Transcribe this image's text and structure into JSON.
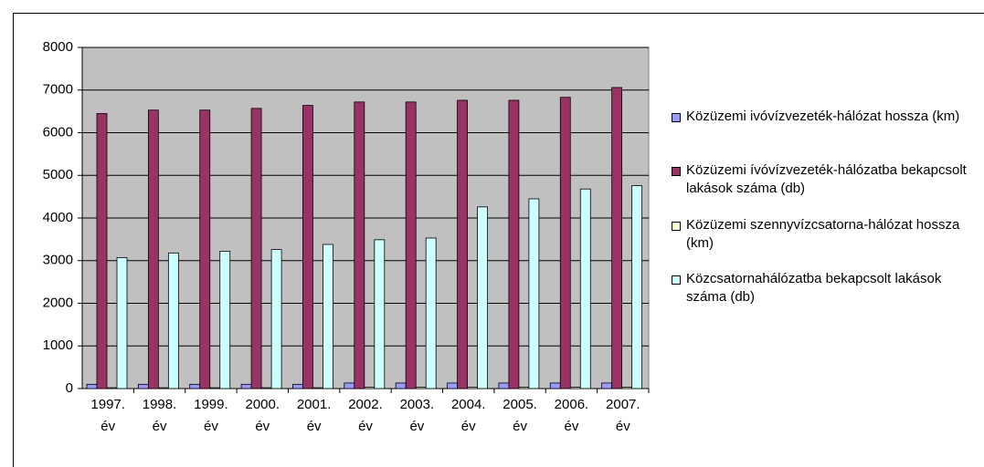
{
  "chart_data": {
    "type": "bar",
    "categories": [
      "1997. év",
      "1998. év",
      "1999. év",
      "2000. év",
      "2001. év",
      "2002. év",
      "2003. év",
      "2004. év",
      "2005. év",
      "2006. év",
      "2007. év"
    ],
    "series": [
      {
        "name": "Közüzemi ivóvízvezeték-hálózat hossza (km)",
        "color": "#9999ff",
        "values": [
          100,
          100,
          100,
          100,
          100,
          130,
          130,
          130,
          130,
          130,
          130
        ]
      },
      {
        "name": "Közüzemi ívóvízvezeték-hálózatba bekapcsolt lakások száma (db)",
        "color": "#993366",
        "values": [
          6450,
          6530,
          6530,
          6570,
          6640,
          6720,
          6720,
          6760,
          6760,
          6830,
          7060
        ]
      },
      {
        "name": "Közüzemi szennyvízcsatorna-hálózat hossza (km)",
        "color": "#ffffcc",
        "values": [
          20,
          20,
          20,
          20,
          20,
          30,
          30,
          30,
          30,
          30,
          30
        ]
      },
      {
        "name": "Közcsatornahálózatba bekapcsolt lakások száma (db)",
        "color": "#ccffff",
        "values": [
          3070,
          3180,
          3220,
          3260,
          3380,
          3490,
          3530,
          4260,
          4450,
          4680,
          4760
        ]
      }
    ],
    "ylim": [
      0,
      8000
    ],
    "yticks": [
      0,
      1000,
      2000,
      3000,
      4000,
      5000,
      6000,
      7000,
      8000
    ],
    "grid": true,
    "plot_background": "#c0c0c0",
    "legend": "right"
  }
}
